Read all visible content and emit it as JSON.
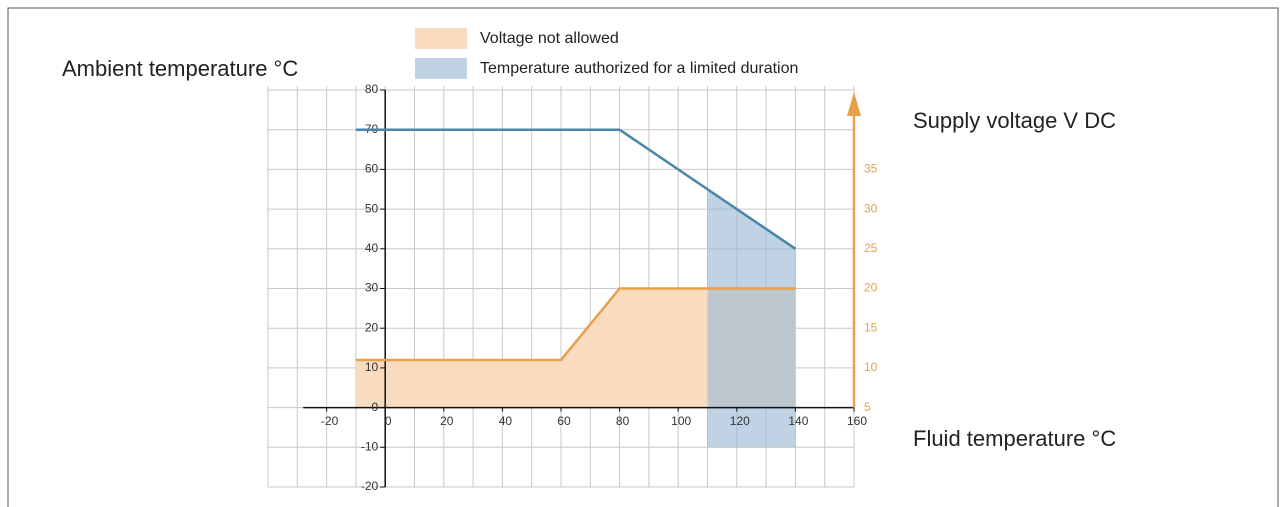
{
  "chart_data": {
    "type": "line",
    "ylabel": "Ambient temperature °C",
    "y2label": "Supply voltage V DC",
    "xlabel": "Fluid temperature °C",
    "xlim": [
      -40,
      160
    ],
    "xticks": [
      -20,
      0,
      20,
      40,
      60,
      80,
      100,
      120,
      140,
      160
    ],
    "xgrid": [
      -40,
      -30,
      -10,
      10,
      30,
      50,
      70,
      90,
      110,
      130,
      150
    ],
    "ylim": [
      -20,
      80
    ],
    "yticks": [
      -20,
      -10,
      0,
      10,
      20,
      30,
      40,
      50,
      60,
      70,
      80
    ],
    "y2lim": [
      -5,
      45
    ],
    "y2ticks": [
      5,
      10,
      15,
      20,
      25,
      30,
      35
    ],
    "y2color": "#e8a04a",
    "grid": true,
    "series": [
      {
        "color": "#4a86a8",
        "x": [
          -10,
          80,
          140
        ],
        "values": [
          70,
          70,
          40
        ]
      },
      {
        "color": "#e8a04a",
        "axis": "y2",
        "x": [
          -10,
          60,
          80,
          140
        ],
        "values": [
          11,
          11,
          20,
          20
        ]
      }
    ],
    "area": {
      "name": "Voltage not allowed",
      "color": "#f9dcc0",
      "series": 1
    },
    "span": {
      "name": "Temperature authorized for a limited duration",
      "color": "#9dbcd6",
      "x": [
        110,
        140
      ],
      "y_bottom": -10,
      "series": 0
    }
  }
}
